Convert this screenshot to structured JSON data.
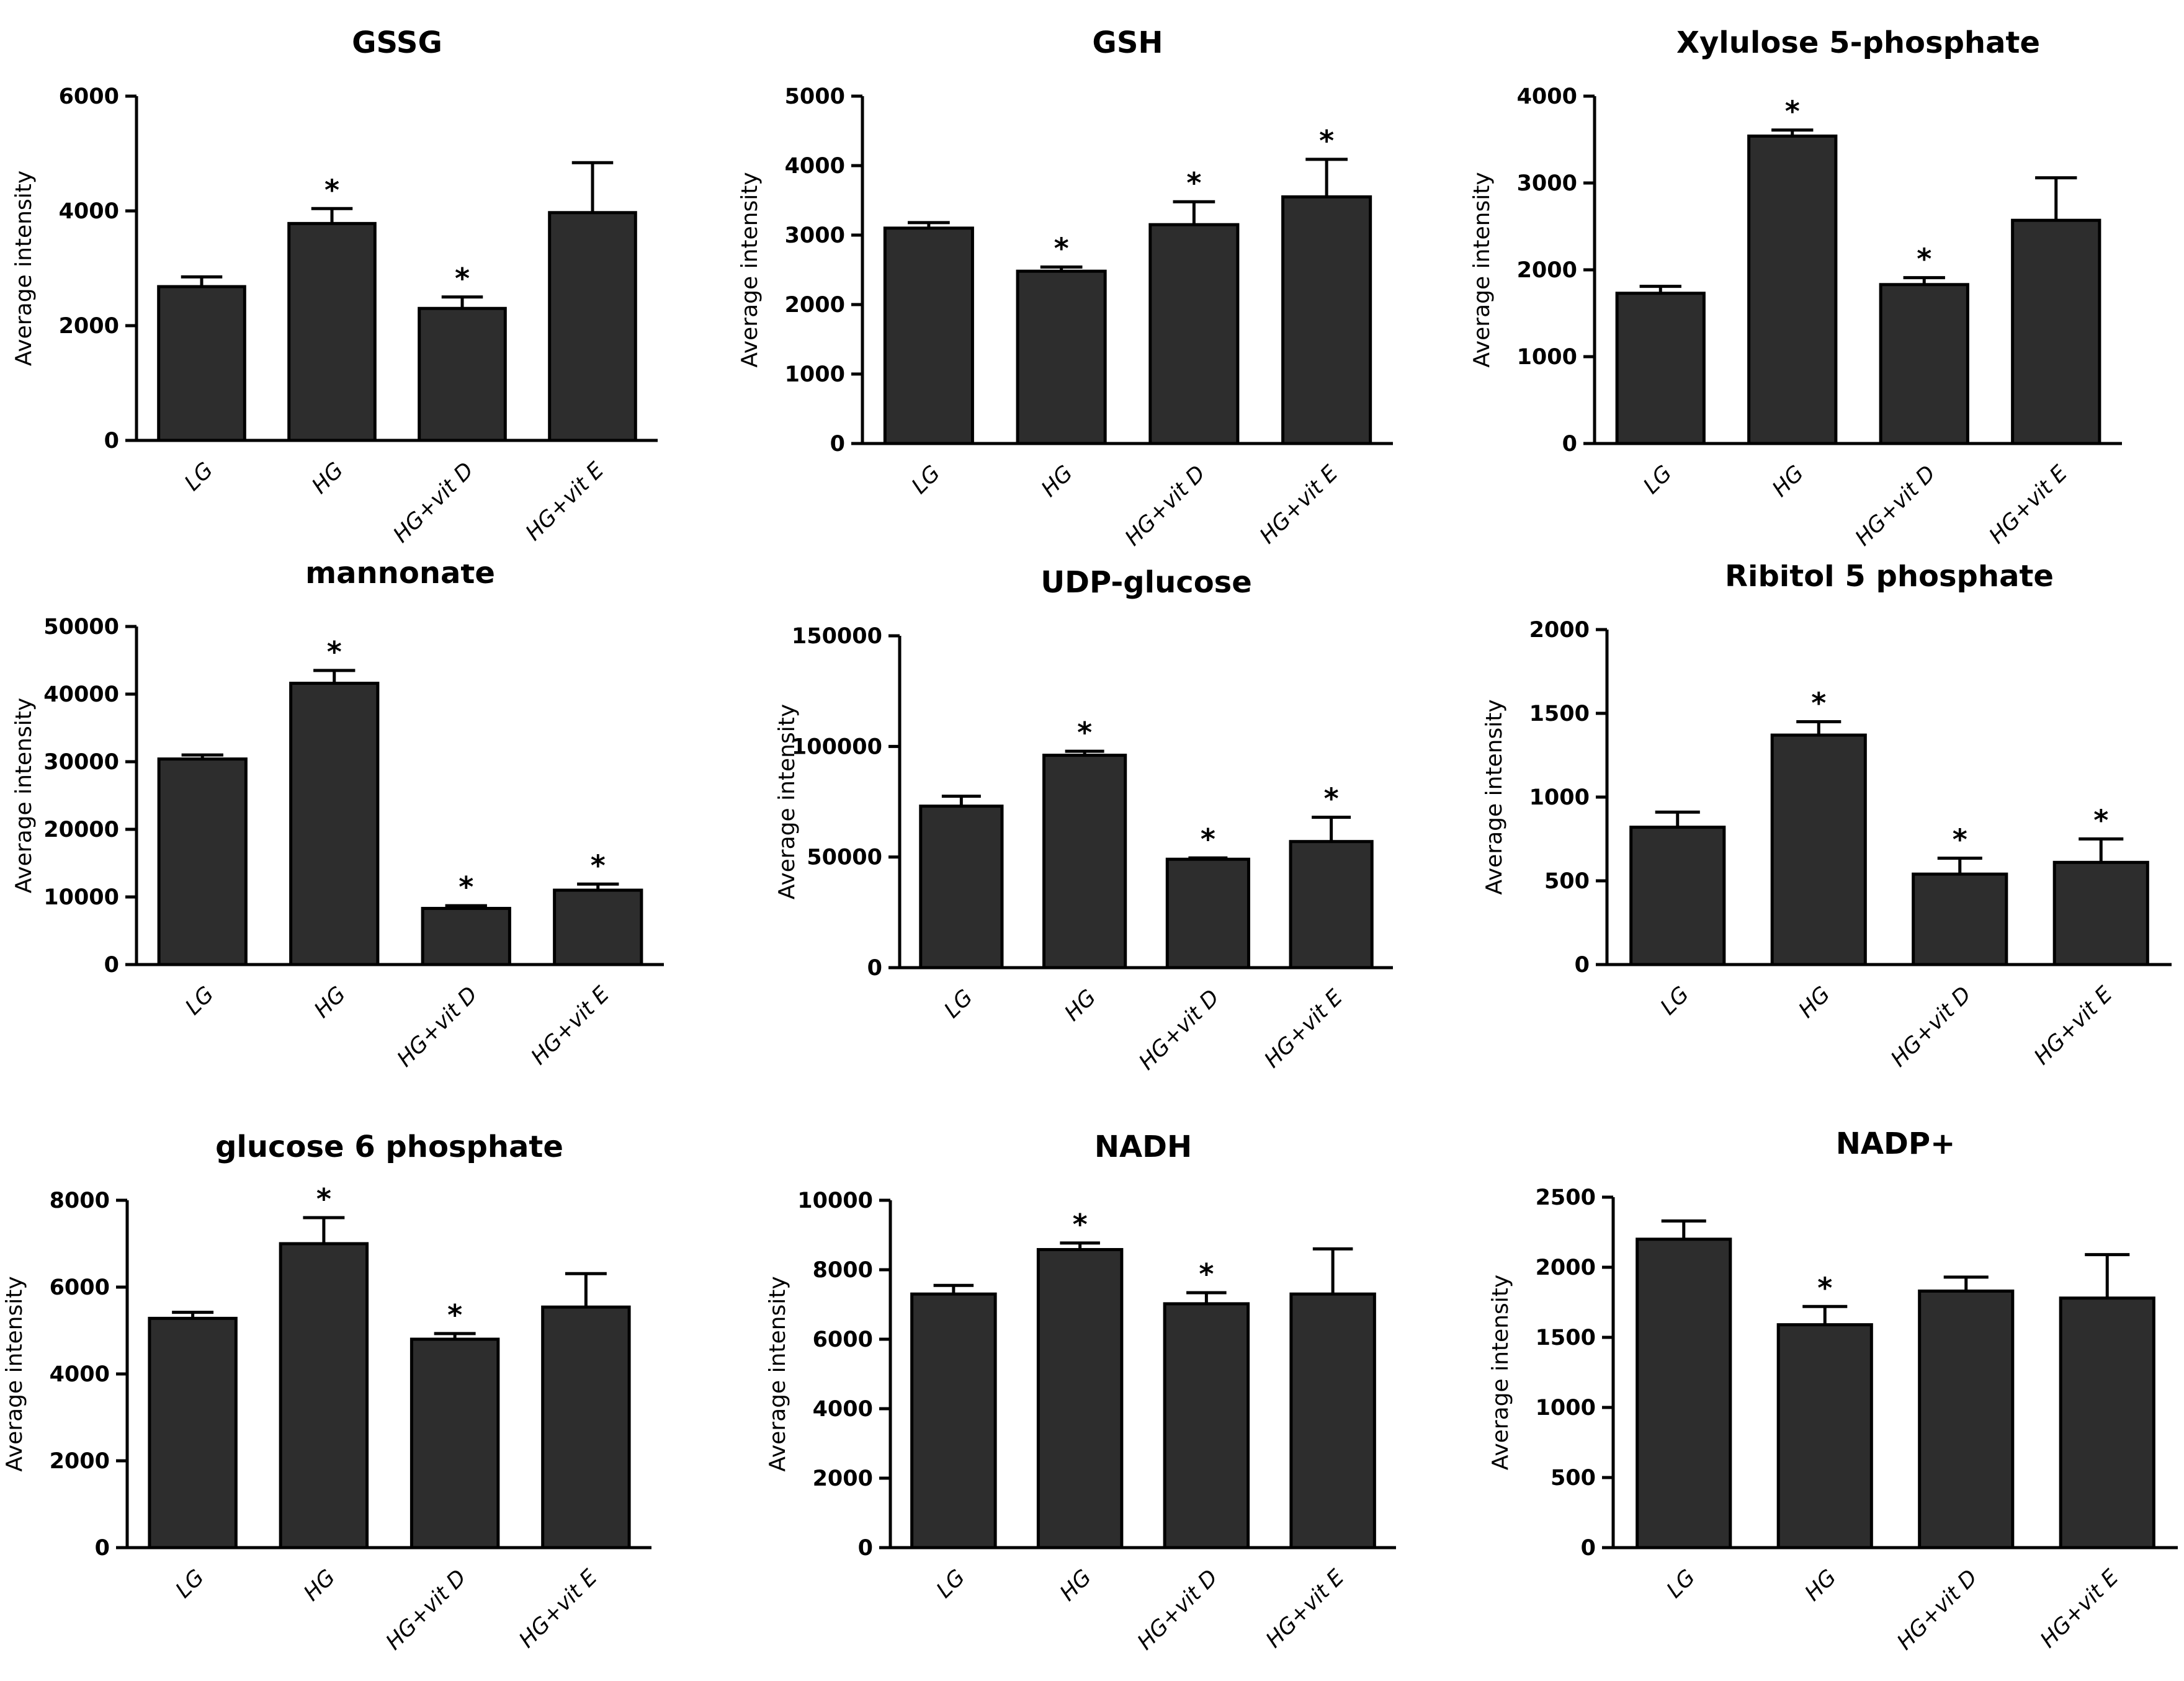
{
  "chart_data": [
    {
      "type": "bar",
      "title": "GSSG",
      "ylabel": "Average intensity",
      "categories": [
        "LG",
        "HG",
        "HG+vit D",
        "HG+vit E"
      ],
      "values": [
        2680,
        3780,
        2300,
        3970
      ],
      "errors": [
        170,
        260,
        200,
        870
      ],
      "significant": [
        false,
        true,
        true,
        false
      ],
      "sig_label": "*",
      "ylim": [
        0,
        6000
      ],
      "yticks": [
        0,
        2000,
        4000,
        6000
      ]
    },
    {
      "type": "bar",
      "title": "GSH",
      "ylabel": "Average intensity",
      "categories": [
        "LG",
        "HG",
        "HG+vit D",
        "HG+vit E"
      ],
      "values": [
        3100,
        2480,
        3150,
        3550
      ],
      "errors": [
        80,
        60,
        330,
        540
      ],
      "significant": [
        false,
        true,
        true,
        true
      ],
      "sig_label": "*",
      "ylim": [
        0,
        5000
      ],
      "yticks": [
        0,
        1000,
        2000,
        3000,
        4000,
        5000
      ]
    },
    {
      "type": "bar",
      "title": "Xylulose 5-phosphate",
      "ylabel": "Average intensity",
      "categories": [
        "LG",
        "HG",
        "HG+vit D",
        "HG+vit E"
      ],
      "values": [
        1730,
        3540,
        1830,
        2570
      ],
      "errors": [
        80,
        70,
        80,
        490
      ],
      "significant": [
        false,
        true,
        true,
        false
      ],
      "sig_label": "*",
      "ylim": [
        0,
        4000
      ],
      "yticks": [
        0,
        1000,
        2000,
        3000,
        4000
      ]
    },
    {
      "type": "bar",
      "title": "mannonate",
      "ylabel": "Average intensity",
      "categories": [
        "LG",
        "HG",
        "HG+vit D",
        "HG+vit E"
      ],
      "values": [
        30400,
        41600,
        8300,
        11000
      ],
      "errors": [
        600,
        1900,
        400,
        900
      ],
      "significant": [
        false,
        true,
        true,
        true
      ],
      "sig_label": "*",
      "ylim": [
        0,
        50000
      ],
      "yticks": [
        0,
        10000,
        20000,
        30000,
        40000,
        50000
      ]
    },
    {
      "type": "bar",
      "title": "UDP-glucose",
      "ylabel": "Average intensity",
      "categories": [
        "LG",
        "HG",
        "HG+vit D",
        "HG+vit E"
      ],
      "values": [
        73000,
        96000,
        49000,
        57000
      ],
      "errors": [
        4500,
        1800,
        600,
        11000
      ],
      "significant": [
        false,
        true,
        true,
        true
      ],
      "sig_label": "*",
      "ylim": [
        0,
        150000
      ],
      "yticks": [
        0,
        50000,
        100000,
        150000
      ]
    },
    {
      "type": "bar",
      "title": "Ribitol 5 phosphate",
      "ylabel": "Average intensity",
      "categories": [
        "LG",
        "HG",
        "HG+vit D",
        "HG+vit E"
      ],
      "values": [
        820,
        1370,
        540,
        610
      ],
      "errors": [
        90,
        80,
        95,
        140
      ],
      "significant": [
        false,
        true,
        true,
        true
      ],
      "sig_label": "*",
      "ylim": [
        0,
        2000
      ],
      "yticks": [
        0,
        500,
        1000,
        1500,
        2000
      ]
    },
    {
      "type": "bar",
      "title": "glucose 6 phosphate",
      "ylabel": "Average intensity",
      "categories": [
        "LG",
        "HG",
        "HG+vit D",
        "HG+vit E"
      ],
      "values": [
        5280,
        7000,
        4800,
        5540
      ],
      "errors": [
        140,
        600,
        130,
        770
      ],
      "significant": [
        false,
        true,
        true,
        false
      ],
      "sig_label": "*",
      "ylim": [
        0,
        8000
      ],
      "yticks": [
        0,
        2000,
        4000,
        6000,
        8000
      ]
    },
    {
      "type": "bar",
      "title": "NADH",
      "ylabel": "Average intensity",
      "categories": [
        "LG",
        "HG",
        "HG+vit D",
        "HG+vit E"
      ],
      "values": [
        7300,
        8580,
        7020,
        7300
      ],
      "errors": [
        250,
        190,
        320,
        1300
      ],
      "significant": [
        false,
        true,
        true,
        false
      ],
      "sig_label": "*",
      "ylim": [
        0,
        10000
      ],
      "yticks": [
        0,
        2000,
        4000,
        6000,
        8000,
        10000
      ]
    },
    {
      "type": "bar",
      "title": "NADP+",
      "ylabel": "Average intensity",
      "categories": [
        "LG",
        "HG",
        "HG+vit D",
        "HG+vit E"
      ],
      "values": [
        2200,
        1590,
        1830,
        1780
      ],
      "errors": [
        130,
        130,
        100,
        310
      ],
      "significant": [
        false,
        true,
        false,
        false
      ],
      "sig_label": "*",
      "ylim": [
        0,
        2500
      ],
      "yticks": [
        0,
        500,
        1000,
        1500,
        2000,
        2500
      ]
    }
  ]
}
